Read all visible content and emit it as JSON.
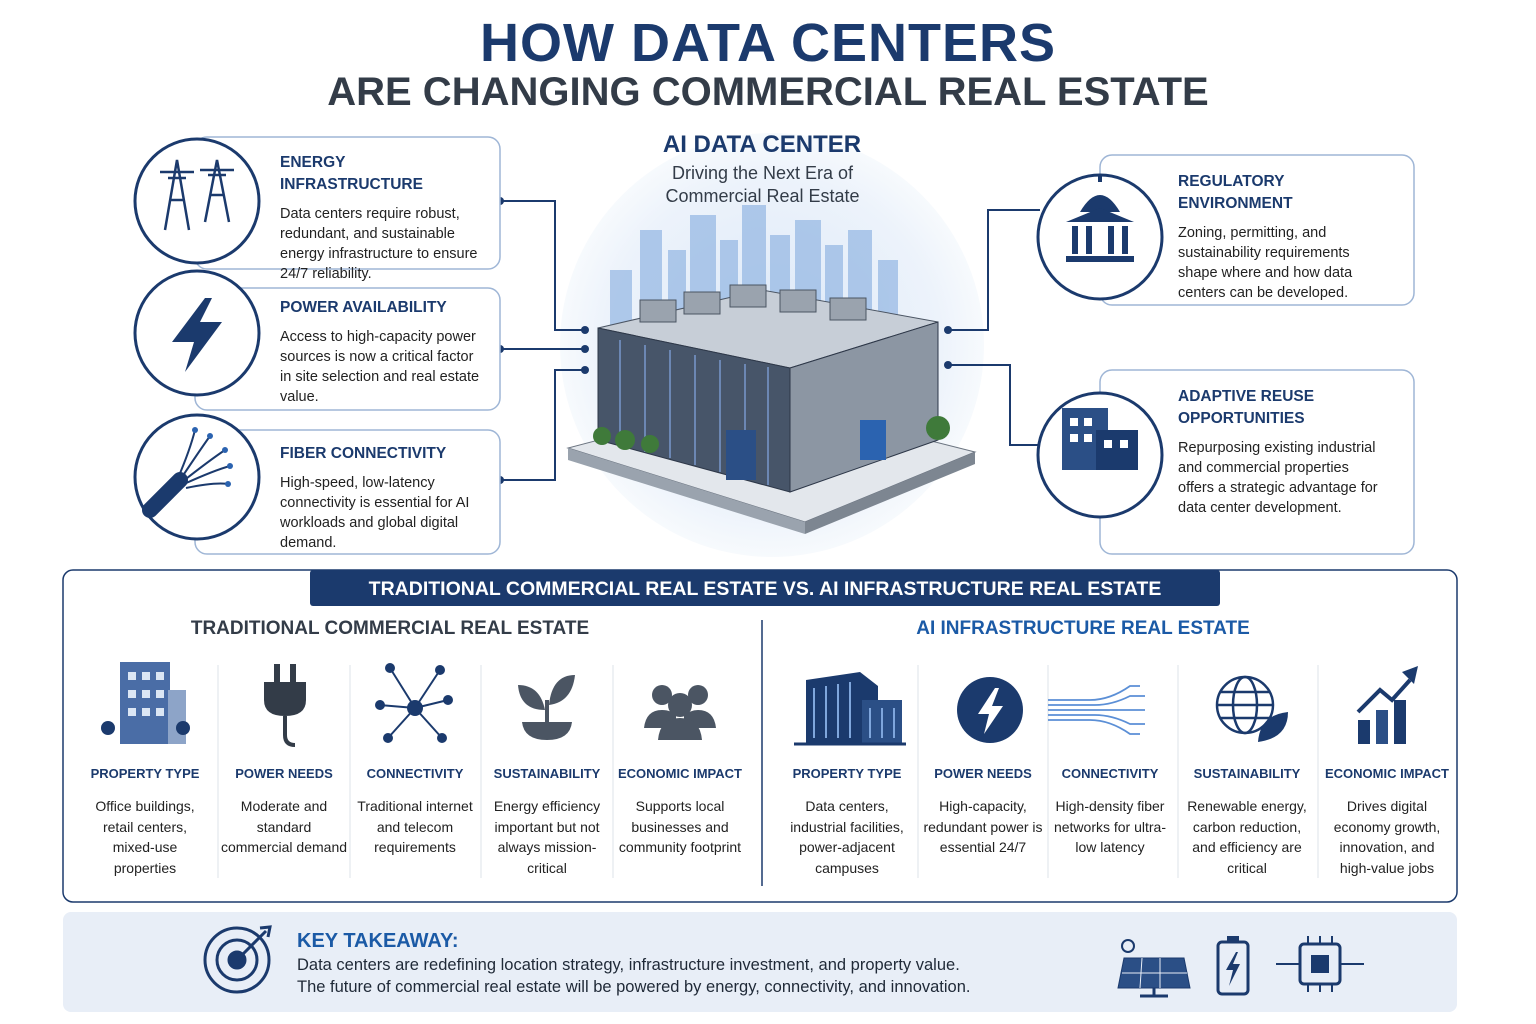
{
  "header": {
    "title": "HOW DATA CENTERS",
    "subtitle": "ARE CHANGING COMMERCIAL REAL ESTATE"
  },
  "center": {
    "title": "AI DATA CENTER",
    "subtitle": "Driving the Next Era of Commercial Real Estate"
  },
  "factors": [
    {
      "title": "ENERGY INFRASTRUCTURE",
      "text": "Data centers require robust, redundant, and sustainable energy infrastructure to ensure 24/7 reliability."
    },
    {
      "title": "POWER AVAILABILITY",
      "text": "Access to high-capacity power sources is now a critical factor in site selection and real estate value."
    },
    {
      "title": "FIBER CONNECTIVITY",
      "text": "High-speed, low-latency connectivity is essential for AI workloads and global digital demand."
    },
    {
      "title": "REGULATORY ENVIRONMENT",
      "text": "Zoning, permitting, and sustainability requirements shape where and how data centers can be developed."
    },
    {
      "title": "ADAPTIVE REUSE OPPORTUNITIES",
      "text": "Repurposing existing industrial and commercial properties offers a strategic advantage for data center development."
    }
  ],
  "comparison": {
    "title": "TRADITIONAL COMMERCIAL REAL ESTATE VS. AI INFRASTRUCTURE REAL ESTATE",
    "left": {
      "title": "TRADITIONAL COMMERCIAL REAL ESTATE",
      "items": [
        {
          "label": "PROPERTY TYPE",
          "text": "Office buildings, retail centers, mixed-use properties"
        },
        {
          "label": "POWER NEEDS",
          "text": "Moderate and standard commercial demand"
        },
        {
          "label": "CONNECTIVITY",
          "text": "Traditional internet and telecom requirements"
        },
        {
          "label": "SUSTAINABILITY",
          "text": "Energy efficiency important but not always mission-critical"
        },
        {
          "label": "ECONOMIC IMPACT",
          "text": "Supports local businesses and community footprint"
        }
      ]
    },
    "right": {
      "title": "AI INFRASTRUCTURE REAL ESTATE",
      "items": [
        {
          "label": "PROPERTY TYPE",
          "text": "Data centers, industrial facilities, power-adjacent campuses"
        },
        {
          "label": "POWER NEEDS",
          "text": "High-capacity, redundant power is essential 24/7"
        },
        {
          "label": "CONNECTIVITY",
          "text": "High-density fiber networks for ultra-low latency"
        },
        {
          "label": "SUSTAINABILITY",
          "text": "Renewable energy, carbon reduction, and efficiency are critical"
        },
        {
          "label": "ECONOMIC IMPACT",
          "text": "Drives digital economy growth, innovation, and high-value jobs"
        }
      ]
    }
  },
  "takeaway": {
    "title": "KEY TAKEAWAY:",
    "lines": [
      "Data centers are redefining location strategy, infrastructure investment, and property value.",
      "The future of commercial real estate will be powered by energy, connectivity, and innovation."
    ]
  }
}
